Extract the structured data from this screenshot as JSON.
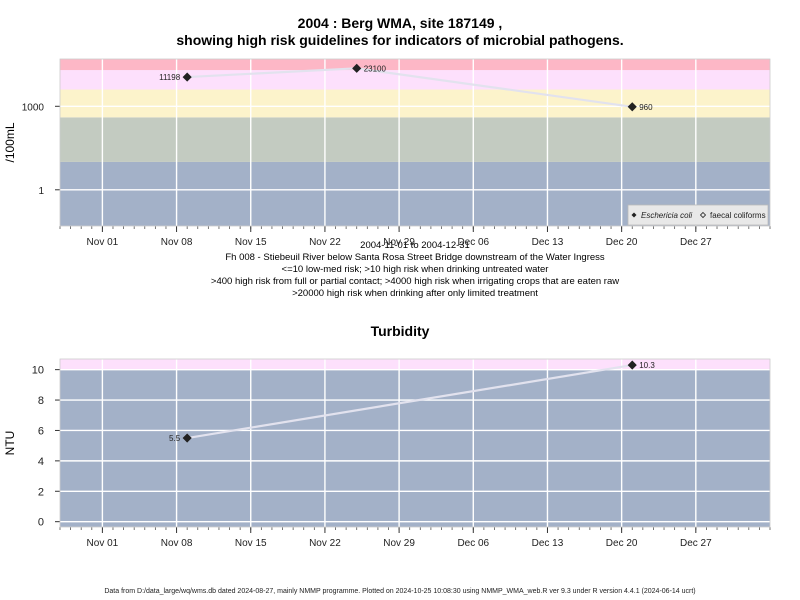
{
  "header": {
    "title_line1": "2004 : Berg WMA, site 187149 ,",
    "title_line2": "showing high risk guidelines for indicators of microbial pathogens."
  },
  "top_caption": [
    "2004-11-01 to 2004-12-31",
    "Fh 008 - Stiebeuil River below Santa Rosa Street Bridge downstream of the Water Ingress",
    "<=10 low-med risk; >10 high risk when drinking untreated water",
    ">400 high risk from full or partial contact; >4000 high risk when irrigating crops that are eaten raw",
    ">20000 high risk when drinking after only limited treatment"
  ],
  "turbidity_title": "Turbidity",
  "footer": "Data from D:/data_large/wq/wms.db dated 2024-08-27, mainly NMMP programme. Plotted on 2024-10-25 10:08:30 using NMMP_WMA_web.R ver 9.3 under R version 4.4.1 (2024-06-14 ucrt)",
  "chart_data": [
    {
      "type": "line",
      "title": "2004 : Berg WMA, site 187149 , showing high risk guidelines for indicators of microbial pathogens.",
      "ylabel": "/100mL",
      "y_scale": "log10",
      "ylim": [
        0.05,
        50000
      ],
      "xlim": [
        "2004-10-28",
        "2005-01-03"
      ],
      "x_ticks": [
        {
          "date": "2004-11-01",
          "label": "Nov 01"
        },
        {
          "date": "2004-11-08",
          "label": "Nov 08"
        },
        {
          "date": "2004-11-15",
          "label": "Nov 15"
        },
        {
          "date": "2004-11-22",
          "label": "Nov 22"
        },
        {
          "date": "2004-11-29",
          "label": "Nov 29"
        },
        {
          "date": "2004-12-06",
          "label": "Dec 06"
        },
        {
          "date": "2004-12-13",
          "label": "Dec 13"
        },
        {
          "date": "2004-12-20",
          "label": "Dec 20"
        },
        {
          "date": "2004-12-27",
          "label": "Dec 27"
        }
      ],
      "y_ticks": [
        {
          "value": 1,
          "label": "1"
        },
        {
          "value": 1000,
          "label": "1000"
        }
      ],
      "bands": [
        {
          "from": 0.05,
          "to": 10,
          "color": "#a3b1c8"
        },
        {
          "from": 10,
          "to": 400,
          "color": "#c3cbc1"
        },
        {
          "from": 400,
          "to": 4000,
          "color": "#fcf3cb"
        },
        {
          "from": 4000,
          "to": 20000,
          "color": "#fde0fc"
        },
        {
          "from": 20000,
          "to": 50000,
          "color": "#fdb7c6"
        }
      ],
      "grid": true,
      "legend_position": "bottom-right",
      "series": [
        {
          "name": "Eschericia coli",
          "marker": "filled-diamond",
          "points": [
            {
              "x": "2004-11-09",
              "y": 11198,
              "label": "11198"
            },
            {
              "x": "2004-11-25",
              "y": 23100,
              "label": "23100"
            },
            {
              "x": "2004-12-21",
              "y": 960,
              "label": "960"
            }
          ]
        },
        {
          "name": "faecal coliforms",
          "marker": "open-diamond",
          "points": []
        }
      ]
    },
    {
      "type": "line",
      "title": "Turbidity",
      "ylabel": "NTU",
      "ylim": [
        -0.35,
        10.7
      ],
      "xlim": [
        "2004-10-28",
        "2005-01-03"
      ],
      "x_ticks": [
        {
          "date": "2004-11-01",
          "label": "Nov 01"
        },
        {
          "date": "2004-11-08",
          "label": "Nov 08"
        },
        {
          "date": "2004-11-15",
          "label": "Nov 15"
        },
        {
          "date": "2004-11-22",
          "label": "Nov 22"
        },
        {
          "date": "2004-11-29",
          "label": "Nov 29"
        },
        {
          "date": "2004-12-06",
          "label": "Dec 06"
        },
        {
          "date": "2004-12-13",
          "label": "Dec 13"
        },
        {
          "date": "2004-12-20",
          "label": "Dec 20"
        },
        {
          "date": "2004-12-27",
          "label": "Dec 27"
        }
      ],
      "y_ticks": [
        {
          "value": 0,
          "label": "0"
        },
        {
          "value": 2,
          "label": "2"
        },
        {
          "value": 4,
          "label": "4"
        },
        {
          "value": 6,
          "label": "6"
        },
        {
          "value": 8,
          "label": "8"
        },
        {
          "value": 10,
          "label": "10"
        }
      ],
      "bands": [
        {
          "from": -0.35,
          "to": 10,
          "color": "#a3b1c8"
        },
        {
          "from": 10,
          "to": 10.7,
          "color": "#fde0fc"
        }
      ],
      "grid": true,
      "series": [
        {
          "marker": "filled-diamond",
          "points": [
            {
              "x": "2004-11-09",
              "y": 5.5,
              "label": "5.5"
            },
            {
              "x": "2004-12-21",
              "y": 10.3,
              "label": "10.3"
            }
          ]
        }
      ]
    }
  ]
}
